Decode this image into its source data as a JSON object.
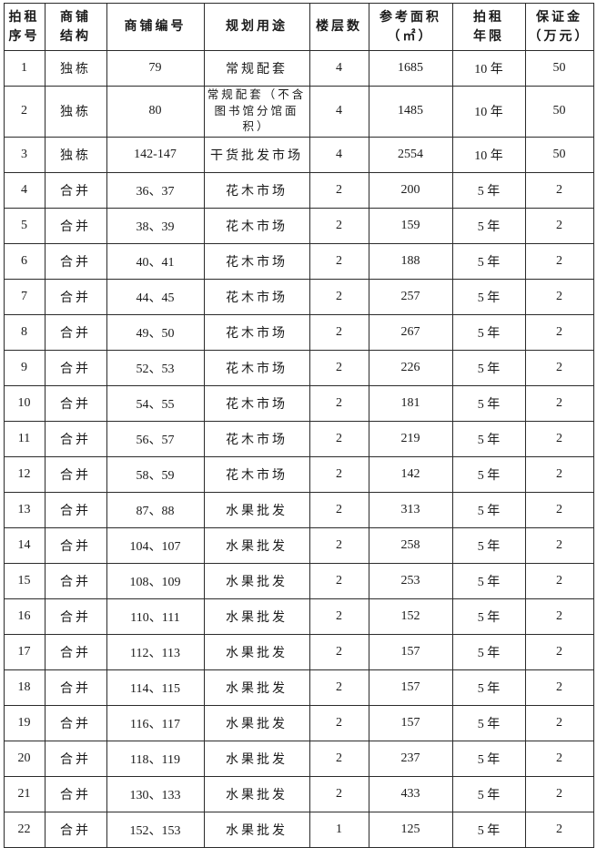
{
  "page": {
    "background_color": "#ffffff",
    "text_color": "#1a1a1a",
    "border_color": "#2b2b2b"
  },
  "table": {
    "columns": [
      {
        "id": "seq",
        "label": "拍租\n序号"
      },
      {
        "id": "structure",
        "label": "商铺\n结构"
      },
      {
        "id": "shop-no",
        "label": "商铺编号"
      },
      {
        "id": "use",
        "label": "规划用途"
      },
      {
        "id": "floors",
        "label": "楼层数"
      },
      {
        "id": "area",
        "label": "参考面积\n（㎡）"
      },
      {
        "id": "term",
        "label": "拍租\n年限"
      },
      {
        "id": "deposit",
        "label": "保证金\n（万元）"
      }
    ],
    "rows": [
      [
        "1",
        "独栋",
        "79",
        "常规配套",
        "4",
        "1685",
        "10 年",
        "50"
      ],
      [
        "2",
        "独栋",
        "80",
        "常规配套（不含图书馆分馆面积）",
        "4",
        "1485",
        "10 年",
        "50"
      ],
      [
        "3",
        "独栋",
        "142-147",
        "干货批发市场",
        "4",
        "2554",
        "10 年",
        "50"
      ],
      [
        "4",
        "合并",
        "36、37",
        "花木市场",
        "2",
        "200",
        "5 年",
        "2"
      ],
      [
        "5",
        "合并",
        "38、39",
        "花木市场",
        "2",
        "159",
        "5 年",
        "2"
      ],
      [
        "6",
        "合并",
        "40、41",
        "花木市场",
        "2",
        "188",
        "5 年",
        "2"
      ],
      [
        "7",
        "合并",
        "44、45",
        "花木市场",
        "2",
        "257",
        "5 年",
        "2"
      ],
      [
        "8",
        "合并",
        "49、50",
        "花木市场",
        "2",
        "267",
        "5 年",
        "2"
      ],
      [
        "9",
        "合并",
        "52、53",
        "花木市场",
        "2",
        "226",
        "5 年",
        "2"
      ],
      [
        "10",
        "合并",
        "54、55",
        "花木市场",
        "2",
        "181",
        "5 年",
        "2"
      ],
      [
        "11",
        "合并",
        "56、57",
        "花木市场",
        "2",
        "219",
        "5 年",
        "2"
      ],
      [
        "12",
        "合并",
        "58、59",
        "花木市场",
        "2",
        "142",
        "5 年",
        "2"
      ],
      [
        "13",
        "合并",
        "87、88",
        "水果批发",
        "2",
        "313",
        "5 年",
        "2"
      ],
      [
        "14",
        "合并",
        "104、107",
        "水果批发",
        "2",
        "258",
        "5 年",
        "2"
      ],
      [
        "15",
        "合并",
        "108、109",
        "水果批发",
        "2",
        "253",
        "5 年",
        "2"
      ],
      [
        "16",
        "合并",
        "110、111",
        "水果批发",
        "2",
        "152",
        "5 年",
        "2"
      ],
      [
        "17",
        "合并",
        "112、113",
        "水果批发",
        "2",
        "157",
        "5 年",
        "2"
      ],
      [
        "18",
        "合并",
        "114、115",
        "水果批发",
        "2",
        "157",
        "5 年",
        "2"
      ],
      [
        "19",
        "合并",
        "116、117",
        "水果批发",
        "2",
        "157",
        "5 年",
        "2"
      ],
      [
        "20",
        "合并",
        "118、119",
        "水果批发",
        "2",
        "237",
        "5 年",
        "2"
      ],
      [
        "21",
        "合并",
        "130、133",
        "水果批发",
        "2",
        "433",
        "5 年",
        "2"
      ],
      [
        "22",
        "合并",
        "152、153",
        "水果批发",
        "1",
        "125",
        "5 年",
        "2"
      ]
    ]
  }
}
